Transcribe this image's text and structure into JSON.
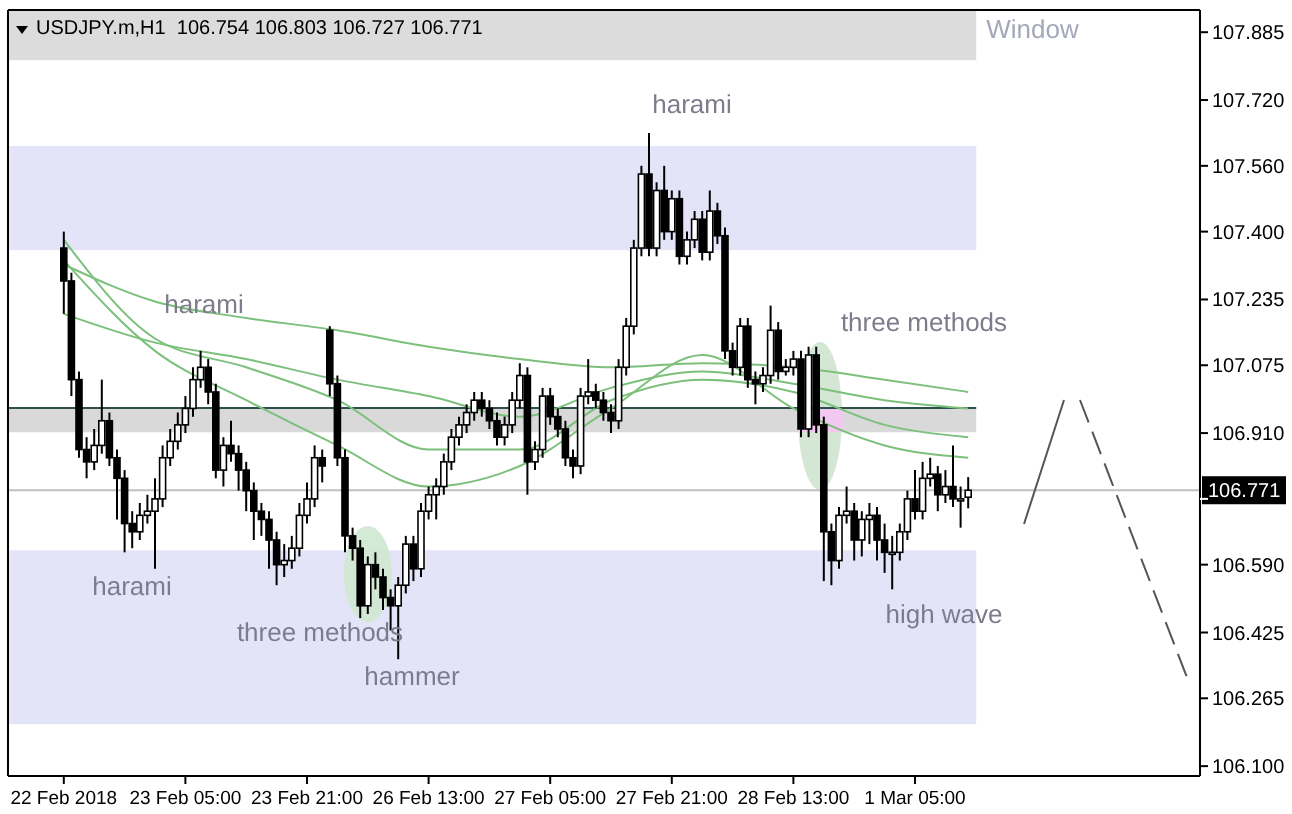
{
  "chart_data": {
    "type": "candlestick",
    "title": "USDJPY.m,H1  106.754 106.803 106.727 106.771",
    "categories": [
      "22 Feb 2018",
      null,
      null,
      null,
      null,
      null,
      null,
      null,
      null,
      null,
      null,
      null,
      null,
      null,
      null,
      null,
      "23 Feb 05:00",
      null,
      null,
      null,
      null,
      null,
      null,
      null,
      null,
      null,
      null,
      null,
      null,
      null,
      null,
      null,
      "23 Feb 21:00",
      null,
      null,
      null,
      null,
      null,
      null,
      null,
      null,
      null,
      null,
      null,
      null,
      null,
      null,
      null,
      "26 Feb 13:00",
      null,
      null,
      null,
      null,
      null,
      null,
      null,
      null,
      null,
      null,
      null,
      null,
      null,
      null,
      null,
      "27 Feb 05:00",
      null,
      null,
      null,
      null,
      null,
      null,
      null,
      null,
      null,
      null,
      null,
      null,
      null,
      null,
      null,
      "27 Feb 21:00",
      null,
      null,
      null,
      null,
      null,
      null,
      null,
      null,
      null,
      null,
      null,
      null,
      null,
      null,
      null,
      "28 Feb 13:00",
      null,
      null,
      null,
      null,
      null,
      null,
      null,
      null,
      null,
      null,
      null,
      null,
      null,
      null,
      null,
      "1 Mar 05:00",
      null,
      null,
      null,
      null,
      null,
      null,
      null,
      null,
      null,
      null,
      null,
      null,
      null,
      null,
      null,
      null,
      null,
      null,
      null,
      null,
      null,
      null,
      null,
      null,
      null,
      null,
      null,
      null,
      null,
      null,
      null,
      null,
      null,
      null,
      null,
      null,
      null
    ],
    "ohlc": [
      [
        107.36,
        107.4,
        107.2,
        107.28
      ],
      [
        107.28,
        107.3,
        107.0,
        107.04
      ],
      [
        107.04,
        107.06,
        106.85,
        106.87
      ],
      [
        106.87,
        106.9,
        106.8,
        106.84
      ],
      [
        106.84,
        106.92,
        106.82,
        106.88
      ],
      [
        106.88,
        107.04,
        106.86,
        106.94
      ],
      [
        106.94,
        106.96,
        106.83,
        106.85
      ],
      [
        106.85,
        106.87,
        106.7,
        106.8
      ],
      [
        106.8,
        106.82,
        106.62,
        106.69
      ],
      [
        106.69,
        106.72,
        106.63,
        106.67
      ],
      [
        106.67,
        106.74,
        106.65,
        106.71
      ],
      [
        106.71,
        106.76,
        106.69,
        106.72
      ],
      [
        106.72,
        106.8,
        106.58,
        106.75
      ],
      [
        106.75,
        106.88,
        106.73,
        106.85
      ],
      [
        106.85,
        106.92,
        106.83,
        106.89
      ],
      [
        106.89,
        106.96,
        106.87,
        106.93
      ],
      [
        106.93,
        107.0,
        106.91,
        106.97
      ],
      [
        106.97,
        107.07,
        106.95,
        107.04
      ],
      [
        107.04,
        107.11,
        107.02,
        107.07
      ],
      [
        107.07,
        107.09,
        106.98,
        107.01
      ],
      [
        107.01,
        107.03,
        106.8,
        106.82
      ],
      [
        106.82,
        106.9,
        106.78,
        106.88
      ],
      [
        106.88,
        106.94,
        106.84,
        106.86
      ],
      [
        106.86,
        106.88,
        106.77,
        106.82
      ],
      [
        106.82,
        106.84,
        106.72,
        106.77
      ],
      [
        106.77,
        106.79,
        106.65,
        106.72
      ],
      [
        106.72,
        106.74,
        106.66,
        106.7
      ],
      [
        106.7,
        106.72,
        106.58,
        106.65
      ],
      [
        106.65,
        106.67,
        106.54,
        106.59
      ],
      [
        106.59,
        106.64,
        106.56,
        106.6
      ],
      [
        106.6,
        106.66,
        106.58,
        106.63
      ],
      [
        106.63,
        106.74,
        106.61,
        106.71
      ],
      [
        106.71,
        106.79,
        106.69,
        106.75
      ],
      [
        106.75,
        106.88,
        106.73,
        106.85
      ],
      [
        106.85,
        106.87,
        106.79,
        106.83
      ],
      [
        107.16,
        107.17,
        107.0,
        107.03
      ],
      [
        107.03,
        107.05,
        106.83,
        106.85
      ],
      [
        106.85,
        106.87,
        106.62,
        106.66
      ],
      [
        106.66,
        106.68,
        106.6,
        106.63
      ],
      [
        106.63,
        106.65,
        106.46,
        106.49
      ],
      [
        106.49,
        106.61,
        106.47,
        106.59
      ],
      [
        106.59,
        106.62,
        106.53,
        106.56
      ],
      [
        106.56,
        106.58,
        106.48,
        106.51
      ],
      [
        106.51,
        106.53,
        106.43,
        106.49
      ],
      [
        106.49,
        106.56,
        106.36,
        106.54
      ],
      [
        106.54,
        106.66,
        106.52,
        106.64
      ],
      [
        106.64,
        106.66,
        106.55,
        106.58
      ],
      [
        106.58,
        106.74,
        106.56,
        106.72
      ],
      [
        106.72,
        106.78,
        106.7,
        106.76
      ],
      [
        106.76,
        106.8,
        106.7,
        106.78
      ],
      [
        106.78,
        106.86,
        106.76,
        106.84
      ],
      [
        106.84,
        106.92,
        106.82,
        106.9
      ],
      [
        106.9,
        106.95,
        106.88,
        106.93
      ],
      [
        106.93,
        106.98,
        106.91,
        106.96
      ],
      [
        106.96,
        107.01,
        106.94,
        106.99
      ],
      [
        106.99,
        107.01,
        106.95,
        106.97
      ],
      [
        106.97,
        106.99,
        106.92,
        106.94
      ],
      [
        106.94,
        106.96,
        106.88,
        106.9
      ],
      [
        106.9,
        106.95,
        106.88,
        106.93
      ],
      [
        106.93,
        107.01,
        106.91,
        106.99
      ],
      [
        106.99,
        107.08,
        106.97,
        107.05
      ],
      [
        107.05,
        107.07,
        106.76,
        106.84
      ],
      [
        106.84,
        106.89,
        106.82,
        106.87
      ],
      [
        106.87,
        107.02,
        106.85,
        107.0
      ],
      [
        107.0,
        107.02,
        106.93,
        106.95
      ],
      [
        106.95,
        106.97,
        106.9,
        106.92
      ],
      [
        106.92,
        106.94,
        106.83,
        106.85
      ],
      [
        106.85,
        106.87,
        106.8,
        106.83
      ],
      [
        106.83,
        107.02,
        106.81,
        107.0
      ],
      [
        107.0,
        107.09,
        106.98,
        107.01
      ],
      [
        107.01,
        107.03,
        106.97,
        106.99
      ],
      [
        106.99,
        107.01,
        106.94,
        106.96
      ],
      [
        106.96,
        106.98,
        106.91,
        106.94
      ],
      [
        106.94,
        107.09,
        106.92,
        107.07
      ],
      [
        107.07,
        107.19,
        107.05,
        107.17
      ],
      [
        107.17,
        107.38,
        107.15,
        107.36
      ],
      [
        107.36,
        107.56,
        107.34,
        107.54
      ],
      [
        107.54,
        107.64,
        107.34,
        107.36
      ],
      [
        107.36,
        107.52,
        107.34,
        107.5
      ],
      [
        107.5,
        107.56,
        107.38,
        107.4
      ],
      [
        107.4,
        107.5,
        107.38,
        107.48
      ],
      [
        107.48,
        107.5,
        107.32,
        107.34
      ],
      [
        107.34,
        107.4,
        107.32,
        107.38
      ],
      [
        107.38,
        107.45,
        107.36,
        107.43
      ],
      [
        107.43,
        107.45,
        107.33,
        107.35
      ],
      [
        107.35,
        107.5,
        107.33,
        107.45
      ],
      [
        107.45,
        107.47,
        107.37,
        107.39
      ],
      [
        107.39,
        107.41,
        107.09,
        107.11
      ],
      [
        107.11,
        107.13,
        107.05,
        107.07
      ],
      [
        107.07,
        107.19,
        107.05,
        107.17
      ],
      [
        107.17,
        107.19,
        107.02,
        107.04
      ],
      [
        107.04,
        107.06,
        106.98,
        107.03
      ],
      [
        107.03,
        107.07,
        107.01,
        107.05
      ],
      [
        107.05,
        107.22,
        107.03,
        107.16
      ],
      [
        107.16,
        107.18,
        107.04,
        107.06
      ],
      [
        107.06,
        107.09,
        107.05,
        107.07
      ],
      [
        107.07,
        107.11,
        107.05,
        107.09
      ],
      [
        107.09,
        107.11,
        106.9,
        106.92
      ],
      [
        106.92,
        107.12,
        106.9,
        107.1
      ],
      [
        107.1,
        107.12,
        106.91,
        106.93
      ],
      [
        106.93,
        106.95,
        106.55,
        106.67
      ],
      [
        106.67,
        106.69,
        106.54,
        106.6
      ],
      [
        106.6,
        106.73,
        106.58,
        106.71
      ],
      [
        106.71,
        106.78,
        106.69,
        106.72
      ],
      [
        106.72,
        106.74,
        106.6,
        106.65
      ],
      [
        106.65,
        106.72,
        106.61,
        106.7
      ],
      [
        106.7,
        106.74,
        106.64,
        106.71
      ],
      [
        106.71,
        106.73,
        106.6,
        106.65
      ],
      [
        106.65,
        106.69,
        106.57,
        106.62
      ],
      [
        106.62,
        106.66,
        106.53,
        106.62
      ],
      [
        106.62,
        106.69,
        106.6,
        106.67
      ],
      [
        106.67,
        106.77,
        106.65,
        106.75
      ],
      [
        106.75,
        106.82,
        106.7,
        106.72
      ],
      [
        106.72,
        106.84,
        106.7,
        106.8
      ],
      [
        106.8,
        106.85,
        106.78,
        106.81
      ],
      [
        106.81,
        106.83,
        106.72,
        106.76
      ],
      [
        106.76,
        106.82,
        106.74,
        106.78
      ],
      [
        106.78,
        106.88,
        106.73,
        106.75
      ],
      [
        106.75,
        106.78,
        106.68,
        106.75
      ],
      [
        106.754,
        106.803,
        106.727,
        106.771
      ],
      null,
      null,
      null,
      null,
      null,
      null,
      null,
      null,
      null,
      null,
      null,
      null,
      null,
      null,
      null,
      null,
      null,
      null,
      null,
      null,
      null,
      null,
      null,
      null,
      null,
      null,
      null,
      null,
      null,
      null
    ],
    "series": [
      {
        "type": "line",
        "color": "#7cc07c",
        "values": [
          107.32,
          null,
          null,
          null,
          null,
          null,
          null,
          null,
          null,
          null,
          null,
          null,
          107.23,
          null,
          null,
          null,
          null,
          null,
          null,
          null,
          null,
          null,
          null,
          null,
          107.19,
          null,
          null,
          null,
          null,
          null,
          null,
          null,
          null,
          null,
          null,
          null,
          107.16,
          null,
          null,
          null,
          null,
          null,
          null,
          null,
          null,
          null,
          null,
          null,
          107.12,
          null,
          null,
          null,
          null,
          null,
          null,
          null,
          null,
          null,
          null,
          null,
          107.09,
          null,
          null,
          null,
          null,
          null,
          null,
          null,
          null,
          null,
          null,
          null,
          107.07,
          null,
          null,
          null,
          null,
          null,
          null,
          null,
          null,
          null,
          null,
          null,
          107.08,
          null,
          null,
          null,
          null,
          null,
          null,
          null,
          null,
          null,
          null,
          null,
          107.07,
          null,
          null,
          null,
          null,
          null,
          null,
          null,
          null,
          null,
          null,
          null,
          107.04,
          null,
          null,
          null,
          null,
          null,
          null,
          null,
          null,
          null,
          null,
          107.01,
          null,
          null,
          null,
          null,
          null,
          null,
          null,
          null,
          null,
          null,
          null,
          null,
          null,
          null,
          null,
          null,
          null,
          null,
          null,
          null,
          null,
          null,
          null,
          null,
          null,
          null,
          null,
          null,
          null,
          null
        ]
      },
      {
        "type": "line",
        "color": "#7cc07c",
        "values": [
          107.2,
          null,
          null,
          null,
          null,
          null,
          null,
          null,
          null,
          null,
          null,
          null,
          107.13,
          null,
          null,
          null,
          null,
          null,
          null,
          null,
          null,
          null,
          null,
          null,
          107.09,
          null,
          null,
          null,
          null,
          null,
          null,
          null,
          null,
          null,
          null,
          null,
          107.04,
          null,
          null,
          null,
          null,
          null,
          null,
          null,
          null,
          null,
          null,
          null,
          107.0,
          null,
          null,
          null,
          null,
          null,
          null,
          null,
          null,
          null,
          null,
          null,
          106.95,
          null,
          null,
          null,
          null,
          null,
          null,
          null,
          null,
          null,
          null,
          null,
          107.02,
          null,
          null,
          null,
          null,
          null,
          null,
          null,
          null,
          null,
          null,
          null,
          107.06,
          null,
          null,
          null,
          null,
          null,
          null,
          null,
          null,
          null,
          null,
          null,
          107.03,
          null,
          null,
          null,
          null,
          null,
          null,
          null,
          null,
          null,
          null,
          null,
          106.99,
          null,
          null,
          null,
          null,
          null,
          null,
          null,
          null,
          null,
          null,
          106.97,
          null,
          null,
          null,
          null,
          null,
          null,
          null,
          null,
          null,
          null,
          null,
          null,
          null,
          null,
          null,
          null,
          null,
          null,
          null,
          null,
          null,
          null,
          null,
          null,
          null,
          null,
          null,
          null,
          null,
          null
        ]
      },
      {
        "type": "line",
        "color": "#7cc07c",
        "values": [
          107.38,
          null,
          null,
          null,
          null,
          null,
          null,
          null,
          null,
          null,
          null,
          null,
          107.14,
          null,
          null,
          null,
          null,
          null,
          null,
          null,
          null,
          null,
          null,
          null,
          107.07,
          null,
          null,
          null,
          null,
          null,
          null,
          null,
          null,
          null,
          null,
          null,
          106.99,
          null,
          null,
          null,
          null,
          null,
          null,
          null,
          null,
          null,
          null,
          null,
          106.87,
          null,
          null,
          null,
          null,
          null,
          null,
          null,
          null,
          null,
          null,
          null,
          106.87,
          null,
          null,
          null,
          null,
          null,
          null,
          null,
          null,
          null,
          null,
          null,
          106.99,
          null,
          null,
          null,
          null,
          null,
          null,
          null,
          null,
          null,
          null,
          null,
          107.04,
          null,
          null,
          null,
          null,
          null,
          null,
          null,
          null,
          null,
          null,
          null,
          107.01,
          null,
          null,
          null,
          null,
          null,
          null,
          null,
          null,
          null,
          null,
          null,
          106.93,
          null,
          null,
          null,
          null,
          null,
          null,
          null,
          null,
          null,
          null,
          106.9,
          null,
          null,
          null,
          null,
          null,
          null,
          null,
          null,
          null,
          null,
          null,
          null,
          null,
          null,
          null,
          null,
          null,
          null,
          null,
          null,
          null,
          null,
          null,
          null,
          null,
          null,
          null,
          null,
          null,
          null
        ]
      },
      {
        "type": "line",
        "color": "#7cc07c",
        "values": [
          107.33,
          null,
          null,
          null,
          null,
          null,
          null,
          null,
          null,
          null,
          null,
          null,
          107.11,
          null,
          null,
          null,
          null,
          null,
          null,
          null,
          null,
          null,
          null,
          null,
          106.99,
          null,
          null,
          null,
          null,
          null,
          null,
          null,
          null,
          null,
          null,
          null,
          106.88,
          null,
          null,
          null,
          null,
          null,
          null,
          null,
          null,
          null,
          null,
          null,
          106.78,
          null,
          null,
          null,
          null,
          null,
          null,
          null,
          null,
          null,
          null,
          null,
          106.83,
          null,
          null,
          null,
          null,
          null,
          null,
          null,
          null,
          null,
          null,
          null,
          106.97,
          null,
          null,
          null,
          null,
          null,
          null,
          null,
          null,
          null,
          null,
          null,
          107.1,
          null,
          null,
          null,
          null,
          null,
          null,
          null,
          null,
          null,
          null,
          null,
          106.97,
          null,
          null,
          null,
          null,
          null,
          null,
          null,
          null,
          null,
          null,
          null,
          106.88,
          null,
          null,
          null,
          null,
          null,
          null,
          null,
          null,
          null,
          null,
          106.85,
          null,
          null,
          null,
          null,
          null,
          null,
          null,
          null,
          null,
          null,
          null,
          null,
          null,
          null,
          null,
          null,
          null,
          null,
          null,
          null,
          null,
          null,
          null,
          null,
          null,
          null,
          null,
          null,
          null,
          null
        ]
      }
    ],
    "ylim": [
      106.076,
      107.939
    ],
    "yticks": [
      107.885,
      {
        "value": 107.72,
        "label": "107.720"
      },
      {
        "value": 107.56,
        "label": "107.560"
      },
      {
        "value": 107.4,
        "label": "107.400"
      },
      107.235,
      107.075,
      {
        "value": 106.91,
        "label": "106.910"
      },
      {
        "value": 106.75,
        "label": null
      },
      {
        "value": 106.59,
        "label": "106.590"
      },
      106.425,
      106.265,
      {
        "value": 106.1,
        "label": "106.100"
      }
    ],
    "bands": [
      {
        "axis": "y",
        "from": 107.817,
        "to": 107.939,
        "label": "Window",
        "color": "#dcdcdc"
      },
      {
        "axis": "y",
        "from": 107.355,
        "to": 107.608,
        "color": "#e4e4f8"
      },
      {
        "axis": "y",
        "from": 106.202,
        "to": 106.625,
        "color": "#e4e4f8"
      },
      {
        "axis": "y",
        "from": 106.912,
        "to": 106.971,
        "color": "#d9d9d9"
      }
    ],
    "ref_lines": [
      {
        "axis": "y",
        "value": 106.771,
        "label": "106.771",
        "color": "#c0c0c0"
      },
      {
        "axis": "y",
        "value": 106.971,
        "color": "#2f4f4f"
      }
    ],
    "annotations": [
      "harami",
      "harami",
      "harami",
      "three methods",
      "hammer",
      "three methods",
      "high wave"
    ]
  }
}
